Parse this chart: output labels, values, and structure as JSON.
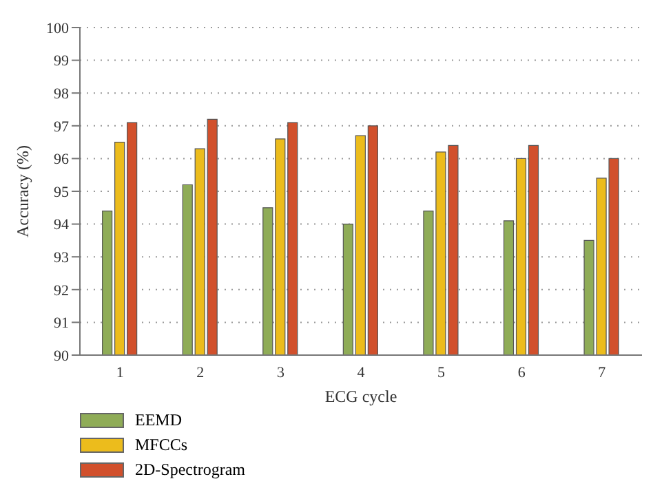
{
  "chart_data": {
    "type": "bar",
    "xlabel": "ECG cycle",
    "ylabel": "Accuracy (%)",
    "categories": [
      "1",
      "2",
      "3",
      "4",
      "5",
      "6",
      "7"
    ],
    "series": [
      {
        "name": "EEMD",
        "color": "#8fac57",
        "values": [
          94.4,
          95.2,
          94.5,
          94.0,
          94.4,
          94.1,
          93.5
        ]
      },
      {
        "name": "MFCCs",
        "color": "#ecbc1c",
        "values": [
          96.5,
          96.3,
          96.6,
          96.7,
          96.2,
          96.0,
          95.4
        ]
      },
      {
        "name": "2D-Spectrogram",
        "color": "#d1502c",
        "values": [
          97.1,
          97.2,
          97.1,
          97.0,
          96.4,
          96.4,
          96.0
        ]
      }
    ],
    "ylim": [
      90,
      100
    ],
    "yticks": [
      90,
      91,
      92,
      93,
      94,
      95,
      96,
      97,
      98,
      99,
      100
    ],
    "grid": "y",
    "legend": "bottom left"
  }
}
